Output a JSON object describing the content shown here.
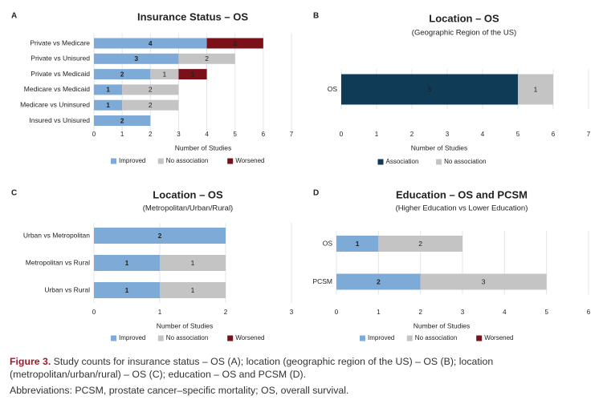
{
  "chart_data": [
    {
      "type": "stacked-barh",
      "panel": "A",
      "title": "Insurance Status – OS",
      "xlabel": "Number of Studies",
      "categories": [
        "Private vs Medicare",
        "Private vs Unisured",
        "Private vs Medicaid",
        "Medicare vs Medicaid",
        "Medicare vs Uninsured",
        "Insured vs Unisured"
      ],
      "series": [
        {
          "name": "Improved",
          "color": "#7eaad8",
          "values": [
            4,
            3,
            2,
            1,
            1,
            2
          ]
        },
        {
          "name": "No association",
          "color": "#c4c4c4",
          "values": [
            null,
            2,
            1,
            2,
            2,
            null
          ]
        },
        {
          "name": "Worsened",
          "color": "#7b1019",
          "values": [
            2,
            null,
            1,
            null,
            null,
            null
          ]
        }
      ],
      "xlim": [
        0,
        7
      ],
      "xticks": [
        0,
        1,
        2,
        3,
        4,
        5,
        6,
        7
      ],
      "grid": true
    },
    {
      "type": "stacked-barh",
      "panel": "B",
      "title": "Location – OS",
      "subtitle": "(Geographic Region of the US)",
      "xlabel": "Number of Studies",
      "categories": [
        "OS"
      ],
      "series": [
        {
          "name": "Association",
          "color": "#0f3b57",
          "values": [
            5
          ]
        },
        {
          "name": "No association",
          "color": "#c4c4c4",
          "values": [
            1
          ]
        }
      ],
      "xlim": [
        0,
        7
      ],
      "xticks": [
        0,
        1,
        2,
        3,
        4,
        5,
        6,
        7
      ],
      "grid": true
    },
    {
      "type": "stacked-barh",
      "panel": "C",
      "title": "Location – OS",
      "subtitle": "(Metropolitan/Urban/Rural)",
      "xlabel": "Number of Studies",
      "categories": [
        "Urban vs Metropolitan",
        "Metropolitan vs Rural",
        "Urban vs Rural"
      ],
      "series": [
        {
          "name": "Improved",
          "color": "#7eaad8",
          "values": [
            2,
            1,
            1
          ]
        },
        {
          "name": "No association",
          "color": "#c4c4c4",
          "values": [
            null,
            1,
            1
          ]
        },
        {
          "name": "Worsened",
          "color": "#7b1019",
          "values": [
            null,
            null,
            null
          ]
        }
      ],
      "xlim": [
        0,
        3
      ],
      "xticks": [
        0,
        1,
        2,
        3
      ],
      "grid": true
    },
    {
      "type": "stacked-barh",
      "panel": "D",
      "title": "Education – OS and PCSM",
      "subtitle": "(Higher Education vs Lower Education)",
      "xlabel": "Number of Studies",
      "categories": [
        "OS",
        "PCSM"
      ],
      "series": [
        {
          "name": "Improved",
          "color": "#7eaad8",
          "values": [
            1,
            2
          ]
        },
        {
          "name": "No association",
          "color": "#c4c4c4",
          "values": [
            2,
            3
          ]
        },
        {
          "name": "Worsened",
          "color": "#7b1019",
          "values": [
            null,
            null
          ]
        }
      ],
      "xlim": [
        0,
        6
      ],
      "xticks": [
        0,
        1,
        2,
        3,
        4,
        5,
        6
      ],
      "grid": true
    }
  ],
  "caption": {
    "label": "Figure 3.",
    "text": "Study counts for insurance status – OS (A); location (geographic region of the US) – OS (B); location (metropolitan/urban/rural) – OS (C); education – OS and PCSM (D).",
    "abbreviations": "Abbreviations: PCSM, prostate cancer–specific mortality; OS, overall survival."
  }
}
